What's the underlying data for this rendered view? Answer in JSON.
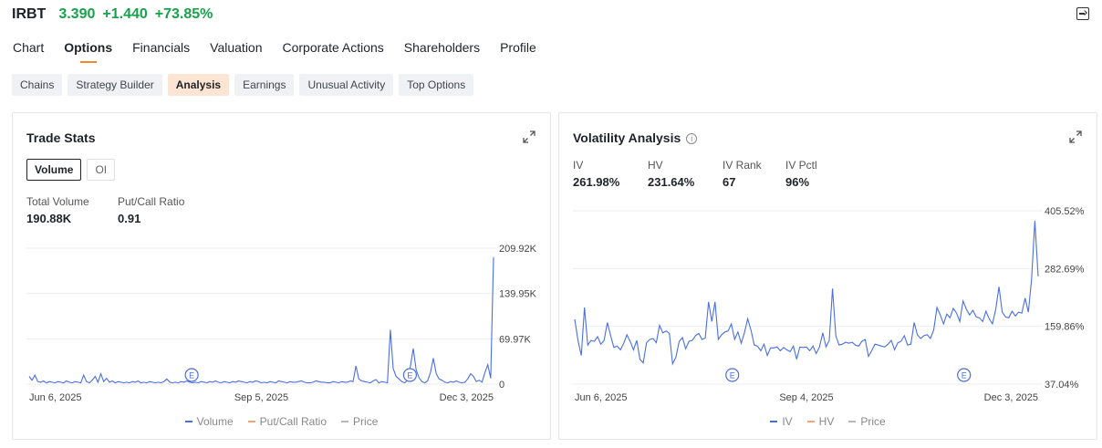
{
  "header": {
    "ticker": "IRBT",
    "price": "3.390",
    "change": "+1.440",
    "change_pct": "+73.85%",
    "change_color": "#16a34a"
  },
  "nav_tabs": [
    "Chart",
    "Options",
    "Financials",
    "Valuation",
    "Corporate Actions",
    "Shareholders",
    "Profile"
  ],
  "active_nav": "Options",
  "sub_tabs": [
    "Chains",
    "Strategy Builder",
    "Analysis",
    "Earnings",
    "Unusual Activity",
    "Top Options"
  ],
  "active_sub": "Analysis",
  "trade_stats": {
    "title": "Trade Stats",
    "toggle": [
      "Volume",
      "OI"
    ],
    "total_volume_label": "Total Volume",
    "total_volume": "190.88K",
    "pc_ratio_label": "Put/Call Ratio",
    "pc_ratio": "0.91",
    "legend": [
      {
        "name": "Volume",
        "color": "#4a6fe3"
      },
      {
        "name": "Put/Call Ratio",
        "color": "#f4a27a"
      },
      {
        "name": "Price",
        "color": "#b5b8bf"
      }
    ]
  },
  "volatility": {
    "title": "Volatility Analysis",
    "info_icon": "info-icon",
    "stats": [
      {
        "label": "IV",
        "value": "261.98%"
      },
      {
        "label": "HV",
        "value": "231.64%"
      },
      {
        "label": "IV Rank",
        "value": "67"
      },
      {
        "label": "IV Pctl",
        "value": "96%"
      }
    ],
    "legend": [
      {
        "name": "IV",
        "color": "#4a6fe3"
      },
      {
        "name": "HV",
        "color": "#f4a27a"
      },
      {
        "name": "Price",
        "color": "#b5b8bf"
      }
    ]
  },
  "chart_data": [
    {
      "type": "line",
      "title": "Trade Stats",
      "series_name": "Volume",
      "x_ticks": [
        "Jun 6, 2025",
        "Sep 5, 2025",
        "Dec 3, 2025"
      ],
      "y_ticks": [
        "209.92K",
        "139.95K",
        "69.97K",
        "0"
      ],
      "ylim": [
        0,
        209.92
      ],
      "earnings_marker_label": "E",
      "earnings_markers_at": [
        0.35,
        0.82
      ],
      "values": [
        12,
        6,
        14,
        4,
        3,
        5,
        2,
        4,
        3,
        2,
        4,
        3,
        2,
        5,
        3,
        2,
        4,
        3,
        2,
        14,
        4,
        2,
        6,
        12,
        3,
        16,
        4,
        9,
        3,
        5,
        2,
        4,
        3,
        2,
        3,
        2,
        4,
        3,
        5,
        2,
        3,
        2,
        4,
        3,
        2,
        3,
        2,
        4,
        8,
        3,
        2,
        3,
        2,
        4,
        3,
        5,
        3,
        2,
        3,
        2,
        4,
        3,
        2,
        4,
        3,
        5,
        3,
        2,
        4,
        3,
        2,
        4,
        3,
        5,
        4,
        3,
        2,
        4,
        3,
        5,
        4,
        2,
        3,
        2,
        4,
        3,
        2,
        5,
        4,
        3,
        2,
        4,
        3,
        3,
        4,
        5,
        3,
        2,
        2,
        3,
        5,
        4,
        3,
        3,
        2,
        2,
        4,
        3,
        2,
        4,
        3,
        3,
        5,
        4,
        28,
        8,
        5,
        4,
        3,
        2,
        5,
        7,
        2,
        4,
        3,
        2,
        84,
        24,
        12,
        8,
        4,
        2,
        6,
        28,
        55,
        22,
        10,
        4,
        2,
        5,
        18,
        40,
        16,
        8,
        6,
        3,
        2,
        4,
        3,
        5,
        3,
        2,
        3,
        8,
        16,
        12,
        4,
        6,
        3,
        18,
        30,
        9,
        196
      ]
    },
    {
      "type": "line",
      "title": "Volatility Analysis",
      "series_name": "IV",
      "x_ticks": [
        "Jun 6, 2025",
        "Sep 4, 2025",
        "Dec 3, 2025"
      ],
      "y_ticks": [
        "405.52%",
        "282.69%",
        "159.86%",
        "37.04%"
      ],
      "ylim": [
        37.04,
        405.52
      ],
      "earnings_marker_label": "E",
      "earnings_markers_at": [
        0.34,
        0.84
      ],
      "values": [
        175,
        130,
        98,
        200,
        120,
        130,
        128,
        138,
        122,
        130,
        168,
        140,
        115,
        118,
        110,
        124,
        142,
        128,
        110,
        130,
        90,
        82,
        125,
        132,
        134,
        125,
        162,
        146,
        150,
        145,
        80,
        94,
        128,
        136,
        112,
        128,
        130,
        140,
        145,
        132,
        135,
        212,
        170,
        212,
        132,
        142,
        148,
        150,
        165,
        132,
        148,
        124,
        146,
        176,
        152,
        120,
        118,
        108,
        122,
        98,
        114,
        114,
        116,
        108,
        115,
        110,
        106,
        118,
        90,
        116,
        115,
        116,
        108,
        118,
        102,
        116,
        146,
        116,
        130,
        240,
        140,
        120,
        122,
        126,
        124,
        126,
        120,
        118,
        128,
        132,
        96,
        108,
        122,
        120,
        118,
        116,
        122,
        130,
        110,
        125,
        128,
        140,
        120,
        122,
        168,
        142,
        134,
        140,
        142,
        134,
        152,
        200,
        184,
        165,
        186,
        178,
        198,
        188,
        170,
        214,
        196,
        184,
        194,
        180,
        178,
        170,
        192,
        176,
        165,
        196,
        244,
        190,
        180,
        178,
        192,
        182,
        190,
        188,
        220,
        190,
        260,
        384,
        266
      ]
    }
  ]
}
